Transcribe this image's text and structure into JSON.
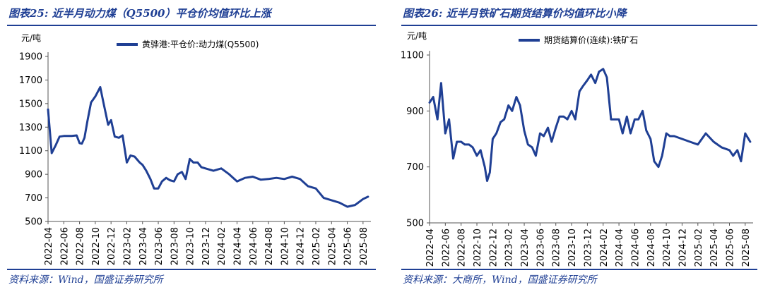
{
  "charts": {
    "left": {
      "fig_title": "图表25:  近半月动力煤（Q5500）平仓价均值环比上涨",
      "source": "资料来源：Wind，国盛证券研究所"
    },
    "right": {
      "fig_title": "图表26:  近半月铁矿石期货结算价均值环比小降",
      "source": "资料来源：大商所，Wind，国盛证券研究所"
    }
  },
  "chart_data": [
    {
      "type": "line",
      "title": "图表25:  近半月动力煤（Q5500）平仓价均值环比上涨",
      "unit": "元/吨",
      "ylim": [
        500,
        1900
      ],
      "yticks": [
        500,
        700,
        900,
        1100,
        1300,
        1500,
        1700,
        1900
      ],
      "xlim": [
        "2022-04",
        "2025-09"
      ],
      "xticks": [
        "2022-04",
        "2022-06",
        "2022-08",
        "2022-10",
        "2022-12",
        "2023-02",
        "2023-04",
        "2023-06",
        "2023-08",
        "2023-10",
        "2023-12",
        "2024-02",
        "2024-04",
        "2024-06",
        "2024-08",
        "2024-10",
        "2024-12",
        "2025-02",
        "2025-04",
        "2025-06",
        "2025-08"
      ],
      "legend_position": "top",
      "color": "#1f3f94",
      "series": [
        {
          "name": "黄骅港:平仓价:动力煤(Q5500)",
          "x": [
            "2022-04",
            "2022-04-15",
            "2022-05",
            "2022-05-15",
            "2022-06",
            "2022-07",
            "2022-07-20",
            "2022-08",
            "2022-08-10",
            "2022-08-20",
            "2022-09",
            "2022-09-15",
            "2022-10",
            "2022-10-20",
            "2022-11",
            "2022-11-20",
            "2022-12",
            "2022-12-15",
            "2023-01",
            "2023-01-15",
            "2023-02",
            "2023-02-15",
            "2023-03",
            "2023-03-20",
            "2023-04",
            "2023-04-15",
            "2023-05",
            "2023-05-15",
            "2023-06",
            "2023-06-15",
            "2023-07",
            "2023-07-15",
            "2023-08",
            "2023-08-15",
            "2023-09",
            "2023-09-15",
            "2023-10",
            "2023-10-15",
            "2023-11",
            "2023-11-15",
            "2023-12",
            "2024-01",
            "2024-02",
            "2024-03",
            "2024-04",
            "2024-05",
            "2024-06",
            "2024-07",
            "2024-08",
            "2024-09",
            "2024-10",
            "2024-11",
            "2024-12",
            "2025-01",
            "2025-02",
            "2025-03",
            "2025-04",
            "2025-05",
            "2025-06",
            "2025-07",
            "2025-08",
            "2025-08-20"
          ],
          "values": [
            1450,
            1080,
            1150,
            1220,
            1225,
            1225,
            1230,
            1165,
            1160,
            1210,
            1350,
            1510,
            1560,
            1640,
            1520,
            1320,
            1360,
            1220,
            1210,
            1230,
            1000,
            1060,
            1050,
            1000,
            980,
            930,
            860,
            780,
            780,
            840,
            870,
            850,
            840,
            900,
            920,
            860,
            1030,
            1000,
            1000,
            960,
            950,
            930,
            950,
            900,
            840,
            870,
            880,
            855,
            860,
            870,
            860,
            880,
            860,
            800,
            780,
            700,
            680,
            660,
            625,
            640,
            690,
            710
          ]
        }
      ]
    },
    {
      "type": "line",
      "title": "图表26:  近半月铁矿石期货结算价均值环比小降",
      "unit": "元/吨",
      "ylim": [
        500,
        1100
      ],
      "yticks": [
        500,
        700,
        900,
        1100
      ],
      "xlim": [
        "2022-04",
        "2025-09"
      ],
      "xticks": [
        "2022-04",
        "2022-06",
        "2022-08",
        "2022-10",
        "2022-12",
        "2023-02",
        "2023-04",
        "2023-06",
        "2023-08",
        "2023-10",
        "2023-12",
        "2024-02",
        "2024-04",
        "2024-06",
        "2024-08",
        "2024-10",
        "2024-12",
        "2025-02",
        "2025-04",
        "2025-06",
        "2025-08"
      ],
      "legend_position": "top",
      "color": "#1f3f94",
      "series": [
        {
          "name": "期货结算价(连续):铁矿石",
          "x": [
            "2022-04",
            "2022-04-15",
            "2022-05",
            "2022-05-15",
            "2022-06",
            "2022-06-15",
            "2022-07",
            "2022-07-15",
            "2022-08",
            "2022-08-15",
            "2022-09",
            "2022-09-15",
            "2022-10",
            "2022-10-15",
            "2022-11",
            "2022-11-10",
            "2022-11-20",
            "2022-12",
            "2022-12-15",
            "2023-01",
            "2023-01-15",
            "2023-02",
            "2023-02-15",
            "2023-03",
            "2023-03-15",
            "2023-04",
            "2023-04-15",
            "2023-05",
            "2023-05-15",
            "2023-06",
            "2023-06-15",
            "2023-07",
            "2023-07-15",
            "2023-08",
            "2023-08-15",
            "2023-09",
            "2023-09-15",
            "2023-10",
            "2023-10-15",
            "2023-11",
            "2023-11-15",
            "2023-12",
            "2023-12-15",
            "2024-01",
            "2024-01-15",
            "2024-02",
            "2024-02-15",
            "2024-03",
            "2024-03-15",
            "2024-04",
            "2024-04-15",
            "2024-05",
            "2024-05-15",
            "2024-06",
            "2024-06-15",
            "2024-07",
            "2024-07-15",
            "2024-08",
            "2024-08-15",
            "2024-09",
            "2024-09-15",
            "2024-10",
            "2024-10-15",
            "2024-11",
            "2024-12",
            "2025-01",
            "2025-02",
            "2025-03",
            "2025-04",
            "2025-05",
            "2025-06",
            "2025-06-15",
            "2025-07",
            "2025-07-15",
            "2025-08",
            "2025-08-20"
          ],
          "values": [
            930,
            950,
            870,
            1000,
            820,
            870,
            730,
            790,
            790,
            780,
            780,
            770,
            740,
            760,
            700,
            650,
            680,
            800,
            820,
            860,
            870,
            920,
            900,
            950,
            920,
            830,
            780,
            770,
            740,
            820,
            810,
            840,
            790,
            840,
            880,
            880,
            870,
            900,
            870,
            970,
            990,
            1010,
            1030,
            1000,
            1040,
            1050,
            1020,
            870,
            870,
            870,
            820,
            880,
            820,
            870,
            870,
            900,
            830,
            800,
            720,
            700,
            740,
            820,
            810,
            810,
            800,
            790,
            780,
            820,
            790,
            770,
            760,
            740,
            760,
            720,
            820,
            790
          ]
        }
      ]
    }
  ]
}
